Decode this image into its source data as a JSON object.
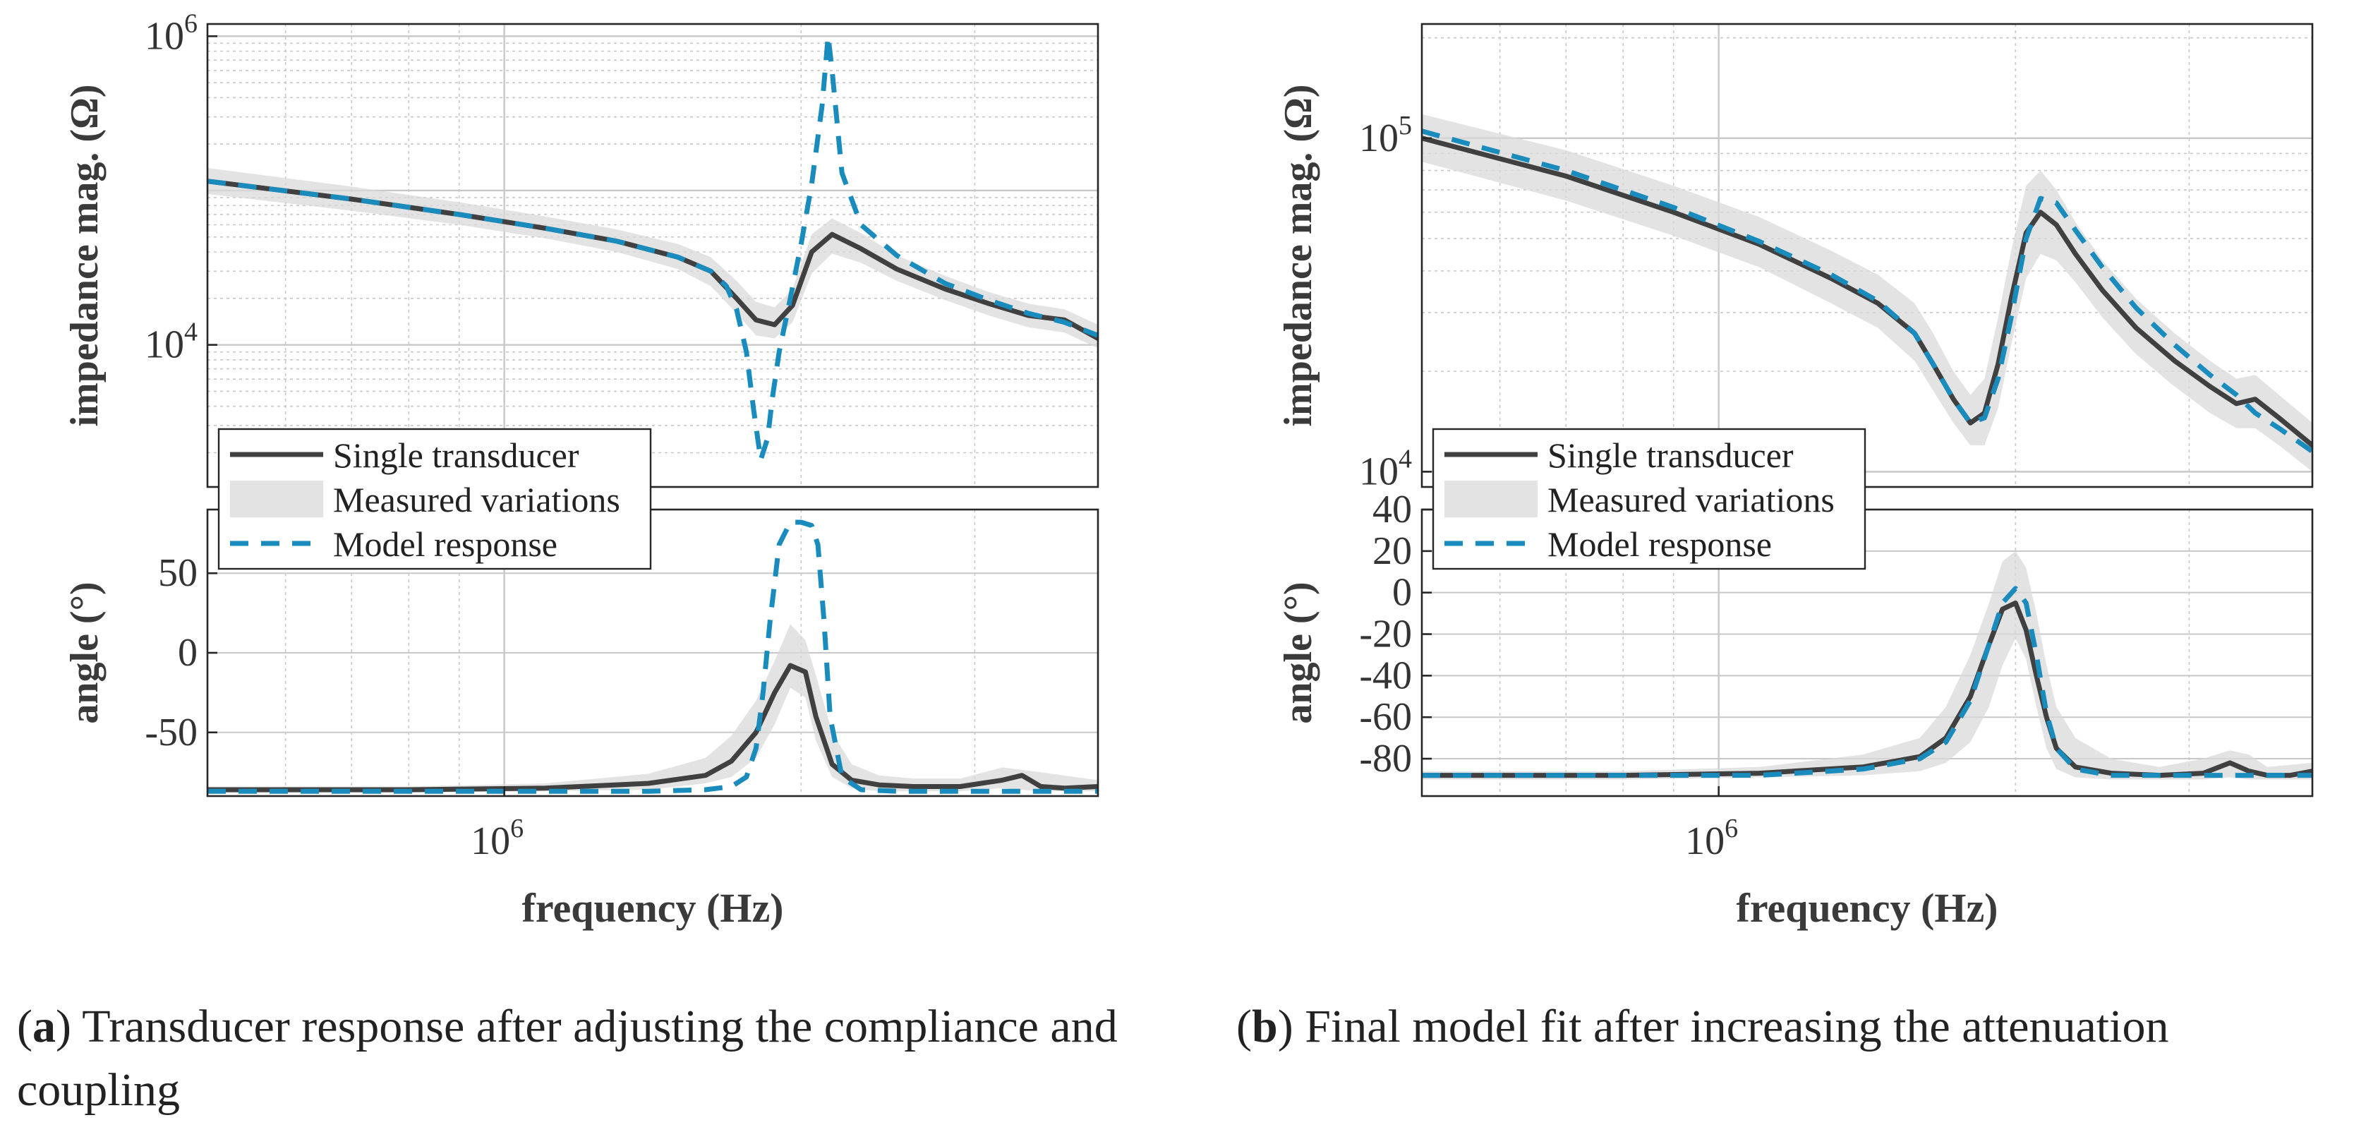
{
  "colors": {
    "single": "#404040",
    "band": "#d9d9d9",
    "model": "#1a8bbd",
    "axis": "#262626",
    "grid": "#c8c8c8"
  },
  "legend": {
    "single": "Single transducer",
    "band": "Measured variations",
    "model": "Model response"
  },
  "captions": {
    "a": {
      "letter": "a",
      "text": "Transducer response after adjusting the compliance and coupling"
    },
    "b": {
      "letter": "b",
      "text": "Final model fit after increasing the attenuation"
    }
  },
  "chart_data": [
    {
      "id": "a",
      "type": "line",
      "xscale": "log",
      "xlim": [
        500000,
        4000000
      ],
      "xlabel": "frequency (Hz)",
      "xticklabels": [
        {
          "value": 1000000,
          "base": "10",
          "exp": "6"
        }
      ],
      "magnitude": {
        "ylabel": "impedance mag. (Ω)",
        "yscale": "log",
        "ylim": [
          1200,
          1200000
        ],
        "yticklabels": [
          {
            "value": 10000,
            "base": "10",
            "exp": "4"
          },
          {
            "value": 1000000,
            "base": "10",
            "exp": "6"
          }
        ],
        "single_transducer": {
          "x": [
            500000,
            700000,
            900000,
            1100000,
            1300000,
            1500000,
            1620000,
            1720000,
            1800000,
            1880000,
            1960000,
            2050000,
            2150000,
            2300000,
            2500000,
            2800000,
            3100000,
            3400000,
            3700000,
            4000000
          ],
          "y": [
            115000,
            88000,
            70000,
            57000,
            47000,
            37000,
            30000,
            20000,
            14500,
            13500,
            18000,
            40000,
            52000,
            42000,
            31000,
            23000,
            18500,
            15500,
            14500,
            11000
          ]
        },
        "measured_variations": {
          "x": [
            500000,
            700000,
            900000,
            1100000,
            1300000,
            1500000,
            1620000,
            1720000,
            1800000,
            1880000,
            1960000,
            2050000,
            2150000,
            2300000,
            2500000,
            2800000,
            3100000,
            3400000,
            3700000,
            4000000
          ],
          "lower": [
            95000,
            74000,
            60000,
            49000,
            40000,
            31000,
            24000,
            16000,
            11500,
            11000,
            14000,
            29000,
            39000,
            34000,
            26000,
            19500,
            15500,
            13000,
            12000,
            9500
          ],
          "upper": [
            140000,
            106000,
            84000,
            68000,
            56000,
            45000,
            37000,
            26000,
            19000,
            17500,
            23000,
            52000,
            66000,
            53000,
            38000,
            28000,
            22000,
            18500,
            17000,
            13500
          ]
        },
        "model_response": {
          "x": [
            500000,
            700000,
            900000,
            1100000,
            1300000,
            1500000,
            1620000,
            1680000,
            1720000,
            1760000,
            1790000,
            1820000,
            1850000,
            1870000,
            1900000,
            1950000,
            2000000,
            2050000,
            2100000,
            2130000,
            2150000,
            2200000,
            2300000,
            2500000,
            2800000,
            3100000,
            3400000,
            3700000,
            4000000
          ],
          "y": [
            115000,
            88000,
            70000,
            57000,
            47000,
            37000,
            30000,
            24000,
            17000,
            9000,
            3800,
            1800,
            2500,
            4500,
            9000,
            20000,
            45000,
            110000,
            350000,
            1000000,
            600000,
            130000,
            60000,
            38000,
            25000,
            19500,
            16000,
            14000,
            11500
          ]
        }
      },
      "angle": {
        "ylabel": "angle (°)",
        "ylim": [
          -90,
          90
        ],
        "yticks": [
          -50,
          0,
          50
        ],
        "yticklabels": [
          "-50",
          "0",
          "50"
        ],
        "single_transducer": {
          "x": [
            500000,
            800000,
            1100000,
            1400000,
            1600000,
            1700000,
            1800000,
            1880000,
            1950000,
            2020000,
            2070000,
            2150000,
            2250000,
            2400000,
            2600000,
            2900000,
            3200000,
            3350000,
            3500000,
            3700000,
            4000000
          ],
          "y": [
            -86,
            -86,
            -85,
            -82,
            -77,
            -68,
            -50,
            -25,
            -8,
            -12,
            -40,
            -70,
            -80,
            -83,
            -84,
            -84,
            -80,
            -77,
            -84,
            -85,
            -84
          ]
        },
        "measured_variations": {
          "x": [
            500000,
            800000,
            1100000,
            1400000,
            1600000,
            1700000,
            1800000,
            1880000,
            1950000,
            2020000,
            2070000,
            2150000,
            2250000,
            2400000,
            2600000,
            2900000,
            3200000,
            3500000,
            4000000
          ],
          "lower": [
            -88,
            -88,
            -87,
            -86,
            -82,
            -78,
            -66,
            -45,
            -22,
            -28,
            -55,
            -78,
            -85,
            -87,
            -87,
            -87,
            -85,
            -87,
            -87
          ],
          "upper": [
            -84,
            -84,
            -82,
            -76,
            -66,
            -52,
            -30,
            -5,
            18,
            8,
            -14,
            -50,
            -70,
            -77,
            -79,
            -79,
            -72,
            -75,
            -80
          ]
        },
        "model_response": {
          "x": [
            500000,
            1000000,
            1400000,
            1600000,
            1700000,
            1760000,
            1800000,
            1830000,
            1860000,
            1900000,
            1950000,
            2000000,
            2050000,
            2080000,
            2110000,
            2140000,
            2200000,
            2300000,
            2500000,
            3000000,
            4000000
          ],
          "y": [
            -87,
            -87,
            -87,
            -86,
            -84,
            -78,
            -60,
            -25,
            20,
            68,
            82,
            82,
            80,
            68,
            20,
            -40,
            -78,
            -86,
            -87,
            -87,
            -87
          ]
        }
      }
    },
    {
      "id": "b",
      "type": "line",
      "xscale": "log",
      "xlim": [
        500000,
        4000000
      ],
      "xlabel": "frequency (Hz)",
      "xticklabels": [
        {
          "value": 1000000,
          "base": "10",
          "exp": "6"
        }
      ],
      "magnitude": {
        "ylabel": "impedance mag. (Ω)",
        "yscale": "log",
        "ylim": [
          9000,
          220000
        ],
        "yticklabels": [
          {
            "value": 10000,
            "base": "10",
            "exp": "4"
          },
          {
            "value": 100000,
            "base": "10",
            "exp": "5"
          }
        ],
        "single_transducer": {
          "x": [
            500000,
            700000,
            900000,
            1100000,
            1300000,
            1450000,
            1580000,
            1650000,
            1730000,
            1800000,
            1860000,
            1920000,
            1980000,
            2050000,
            2120000,
            2200000,
            2300000,
            2450000,
            2650000,
            2900000,
            3150000,
            3350000,
            3500000,
            3700000,
            4000000
          ],
          "y": [
            100000,
            77000,
            60000,
            48000,
            38000,
            32000,
            26000,
            21000,
            16500,
            14000,
            15000,
            21000,
            33000,
            52000,
            60000,
            55000,
            45000,
            35000,
            27000,
            21500,
            18000,
            16000,
            16500,
            14500,
            12000
          ]
        },
        "measured_variations": {
          "x": [
            500000,
            700000,
            900000,
            1100000,
            1300000,
            1450000,
            1580000,
            1650000,
            1730000,
            1800000,
            1860000,
            1920000,
            1980000,
            2050000,
            2120000,
            2200000,
            2300000,
            2450000,
            2650000,
            2900000,
            3150000,
            3350000,
            3500000,
            3700000,
            4000000
          ],
          "lower": [
            85000,
            65000,
            51000,
            41000,
            32000,
            27000,
            21500,
            17500,
            14000,
            12000,
            12000,
            15500,
            24000,
            38000,
            45000,
            43000,
            37000,
            29000,
            22500,
            18000,
            15000,
            13500,
            13500,
            12000,
            10000
          ],
          "upper": [
            118000,
            92000,
            72000,
            58000,
            46000,
            39000,
            32000,
            26000,
            20000,
            17000,
            19000,
            29000,
            46000,
            72000,
            80000,
            70000,
            56000,
            43000,
            33000,
            26000,
            21500,
            19000,
            19500,
            17000,
            14000
          ]
        },
        "model_response": {
          "x": [
            500000,
            700000,
            900000,
            1100000,
            1300000,
            1450000,
            1580000,
            1650000,
            1730000,
            1800000,
            1860000,
            1920000,
            1980000,
            2050000,
            2120000,
            2200000,
            2300000,
            2450000,
            2650000,
            2900000,
            3150000,
            3350000,
            3500000,
            3700000,
            4000000
          ],
          "y": [
            105000,
            80000,
            62000,
            49000,
            39000,
            32500,
            26000,
            21000,
            16500,
            14000,
            14500,
            19000,
            29000,
            50000,
            66000,
            64000,
            53000,
            41000,
            31000,
            24000,
            19500,
            17000,
            15000,
            13500,
            11500
          ]
        }
      },
      "angle": {
        "ylabel": "angle (°)",
        "ylim": [
          -98,
          40
        ],
        "yticks": [
          -80,
          -60,
          -40,
          -20,
          0,
          20,
          40
        ],
        "yticklabels": [
          "-80",
          "-60",
          "-40",
          "-20",
          "0",
          "20",
          "40"
        ],
        "single_transducer": {
          "x": [
            500000,
            800000,
            1100000,
            1400000,
            1600000,
            1700000,
            1800000,
            1880000,
            1940000,
            2000000,
            2050000,
            2100000,
            2150000,
            2200000,
            2300000,
            2500000,
            2800000,
            3100000,
            3300000,
            3450000,
            3600000,
            3800000,
            4000000
          ],
          "y": [
            -88,
            -88,
            -87,
            -84,
            -79,
            -70,
            -50,
            -25,
            -8,
            -5,
            -18,
            -40,
            -60,
            -75,
            -84,
            -87,
            -88,
            -87,
            -82,
            -86,
            -88,
            -88,
            -86
          ]
        },
        "measured_variations": {
          "x": [
            500000,
            800000,
            1100000,
            1400000,
            1600000,
            1700000,
            1800000,
            1880000,
            1940000,
            2000000,
            2050000,
            2100000,
            2150000,
            2200000,
            2300000,
            2500000,
            2800000,
            3100000,
            3300000,
            3450000,
            3600000,
            4000000
          ],
          "lower": [
            -90,
            -90,
            -89,
            -88,
            -86,
            -82,
            -72,
            -55,
            -35,
            -22,
            -32,
            -55,
            -75,
            -85,
            -89,
            -90,
            -90,
            -90,
            -89,
            -90,
            -90,
            -90
          ],
          "upper": [
            -86,
            -86,
            -84,
            -78,
            -70,
            -55,
            -30,
            -5,
            15,
            20,
            12,
            -10,
            -35,
            -55,
            -70,
            -80,
            -84,
            -80,
            -76,
            -78,
            -84,
            -82
          ]
        },
        "model_response": {
          "x": [
            500000,
            800000,
            1100000,
            1400000,
            1600000,
            1700000,
            1800000,
            1880000,
            1940000,
            2000000,
            2050000,
            2100000,
            2150000,
            2200000,
            2300000,
            2500000,
            2800000,
            3100000,
            3400000,
            3700000,
            4000000
          ],
          "y": [
            -88,
            -88,
            -88,
            -85,
            -80,
            -72,
            -52,
            -25,
            -5,
            2,
            -5,
            -30,
            -58,
            -75,
            -85,
            -88,
            -88,
            -88,
            -88,
            -88,
            -88
          ]
        }
      }
    }
  ]
}
